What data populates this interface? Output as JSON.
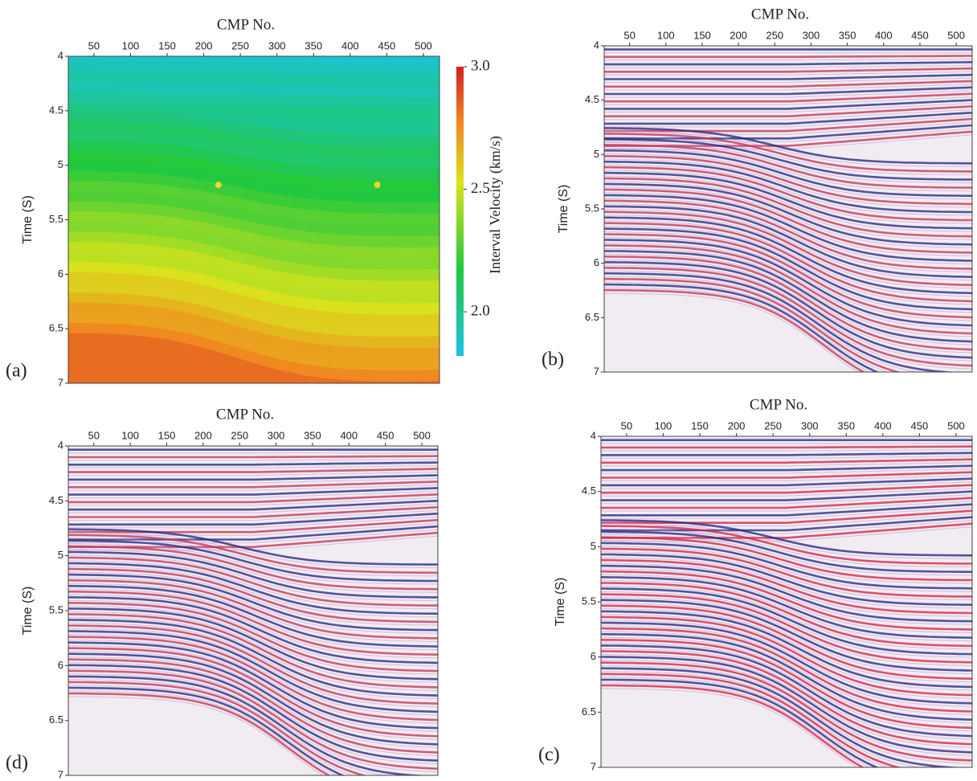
{
  "chart_data": [
    {
      "type": "heatmap",
      "panel_label": "(a)",
      "x_label": "CMP No.",
      "y_label": "Time (S)",
      "xlim": [
        15,
        522
      ],
      "xticks": [
        50,
        100,
        150,
        200,
        250,
        300,
        350,
        400,
        450,
        500
      ],
      "ylim": [
        4,
        7
      ],
      "yticks": [
        4,
        4.5,
        5,
        5.5,
        6,
        6.5,
        7
      ],
      "y_inverted": true,
      "colorbar": {
        "label": "Interval Velocity (km/s)",
        "lim": [
          1.82,
          3.0
        ],
        "ticks": [
          {
            "value": 2,
            "label": "2.0"
          },
          2.5,
          {
            "value": 3,
            "label": "3.0"
          }
        ]
      },
      "points": {
        "x": [
          220,
          437
        ],
        "y": [
          5.18,
          5.18
        ],
        "color": "#f2d23a"
      }
    },
    {
      "type": "seismic",
      "panel_label": "(b)",
      "x_label": "CMP No.",
      "y_label": "Time (S)",
      "xlim": [
        15,
        522
      ],
      "xticks": [
        50,
        100,
        150,
        200,
        250,
        300,
        350,
        400,
        450,
        500
      ],
      "ylim": [
        4,
        7
      ],
      "yticks": [
        4,
        4.5,
        5,
        5.5,
        6,
        6.5,
        7
      ],
      "y_inverted": true
    },
    {
      "type": "seismic",
      "panel_label": "(d)",
      "x_label": "CMP No.",
      "y_label": "Time (S)",
      "xlim": [
        15,
        522
      ],
      "xticks": [
        50,
        100,
        150,
        200,
        250,
        300,
        350,
        400,
        450,
        500
      ],
      "ylim": [
        4,
        7
      ],
      "yticks": [
        4,
        4.5,
        5,
        5.5,
        6,
        6.5,
        7
      ],
      "y_inverted": true
    },
    {
      "type": "seismic",
      "panel_label": "(c)",
      "x_label": "CMP No.",
      "y_label": "Time (S)",
      "xlim": [
        15,
        522
      ],
      "xticks": [
        50,
        100,
        150,
        200,
        250,
        300,
        350,
        400,
        450,
        500
      ],
      "ylim": [
        4,
        7
      ],
      "yticks": [
        4,
        4.5,
        5,
        5.5,
        6,
        6.5,
        7
      ],
      "y_inverted": true
    }
  ]
}
